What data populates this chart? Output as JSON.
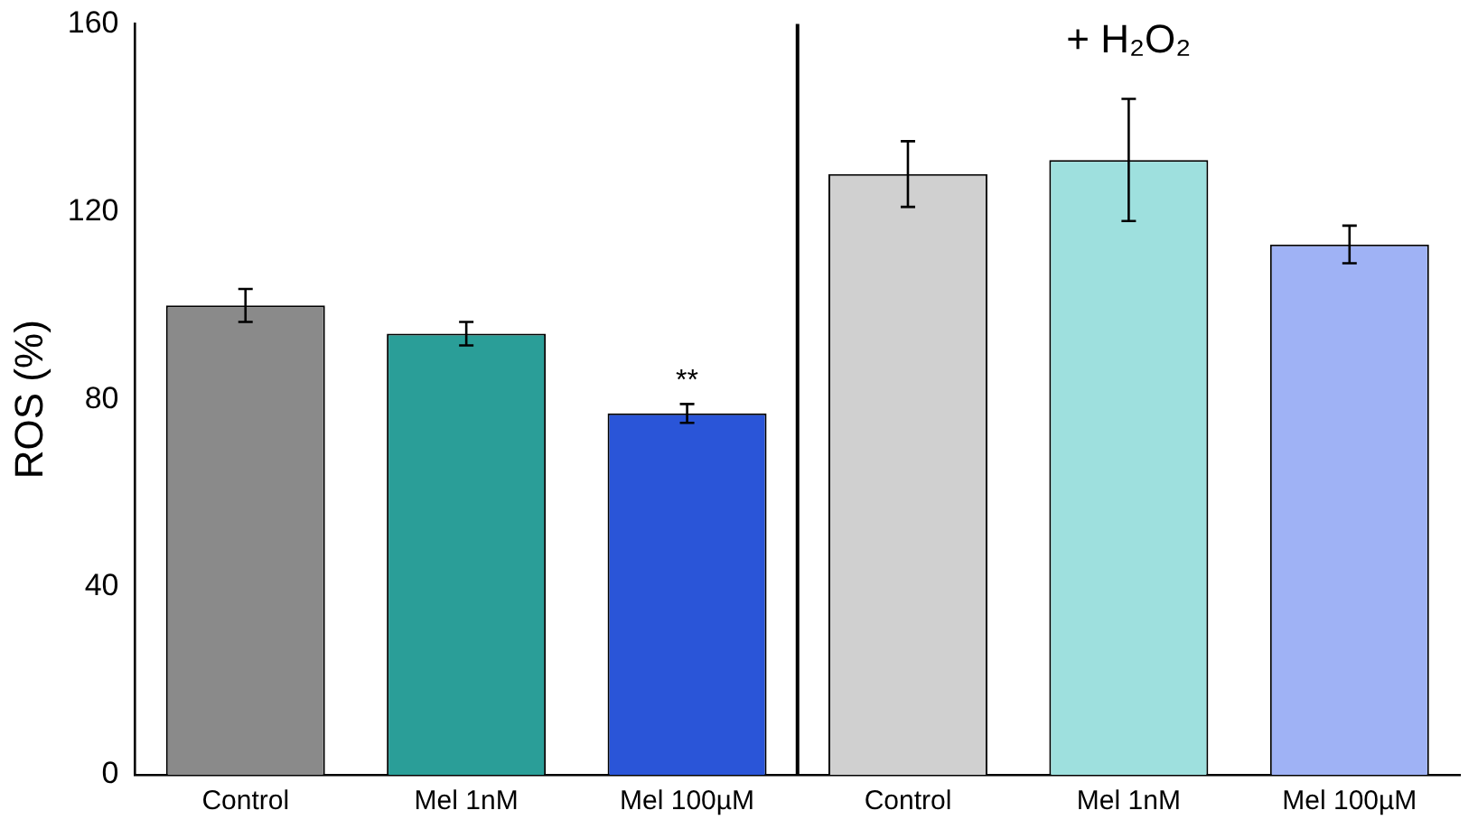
{
  "chart_data": {
    "type": "bar",
    "ylabel": "ROS (%)",
    "categories": [
      "Control",
      "Mel 1nM",
      "Mel 100µM",
      "Control",
      "Mel 1nM",
      "Mel 100µM"
    ],
    "values": [
      100,
      94,
      77,
      128,
      131,
      113
    ],
    "errors": [
      3.5,
      2.5,
      2,
      7,
      13,
      4
    ],
    "colors": [
      "#8a8a8a",
      "#2a9e98",
      "#2a55d8",
      "#d0d0d0",
      "#9ee0de",
      "#9fb2f5"
    ],
    "ylim": [
      0,
      160
    ],
    "yticks": [
      0,
      40,
      80,
      120,
      160
    ],
    "grid": false,
    "annotations": [
      {
        "text": "**",
        "x": "Mel 100µM",
        "y": 80
      },
      "+ H₂O₂"
    ]
  }
}
